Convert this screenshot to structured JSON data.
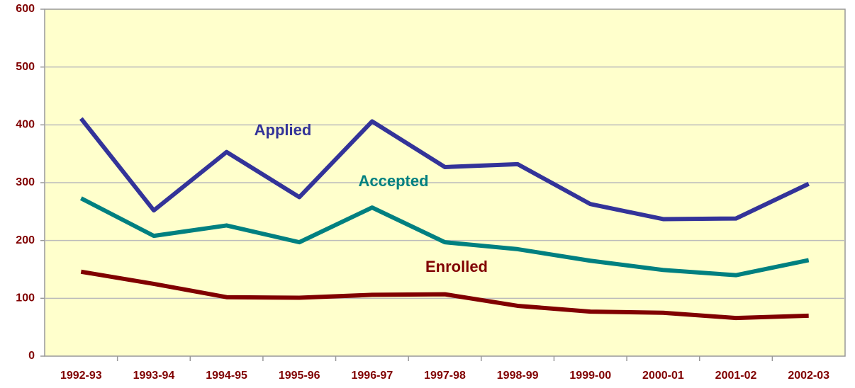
{
  "chart_data": {
    "type": "line",
    "categories": [
      "1992-93",
      "1993-94",
      "1994-95",
      "1995-96",
      "1996-97",
      "1997-98",
      "1998-99",
      "1999-00",
      "2000-01",
      "2001-02",
      "2002-03"
    ],
    "series": [
      {
        "name": "Applied",
        "color": "#333399",
        "values": [
          411,
          252,
          353,
          275,
          406,
          327,
          332,
          263,
          237,
          238,
          298
        ]
      },
      {
        "name": "Accepted",
        "color": "#008080",
        "values": [
          273,
          208,
          226,
          197,
          257,
          197,
          185,
          165,
          149,
          140,
          166
        ]
      },
      {
        "name": "Enrolled",
        "color": "#800000",
        "values": [
          146,
          125,
          102,
          101,
          106,
          107,
          87,
          77,
          75,
          66,
          70
        ]
      }
    ],
    "ylim": [
      0,
      600
    ],
    "yticks": [
      0,
      100,
      200,
      300,
      400,
      500,
      600
    ],
    "grid": true
  }
}
